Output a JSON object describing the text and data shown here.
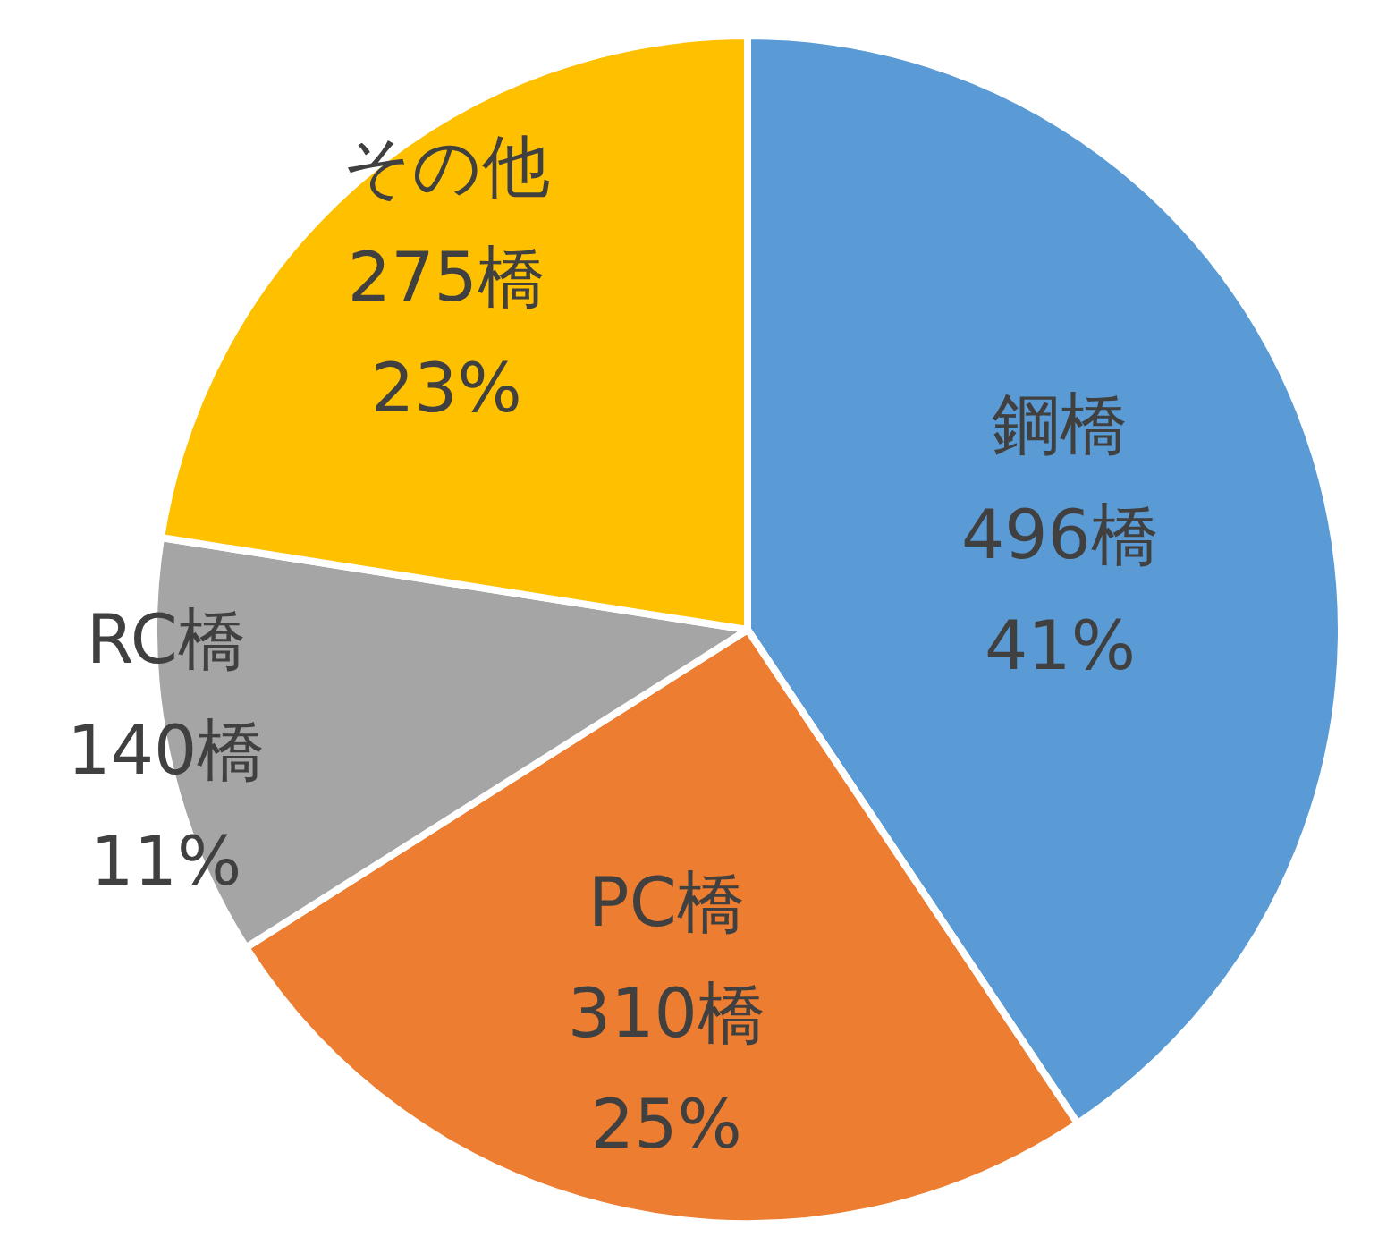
{
  "chart_data": {
    "type": "pie",
    "categories": [
      "鋼橋",
      "PC橋",
      "RC橋",
      "その他"
    ],
    "values": [
      496,
      310,
      140,
      275
    ],
    "colors": [
      "#5b9bd5",
      "#ed7d31",
      "#a5a5a5",
      "#ffc000"
    ],
    "value_labels": [
      "496橋\n41%",
      "310橋\n25%",
      "140橋\n11%",
      "275橋\n23%"
    ]
  }
}
